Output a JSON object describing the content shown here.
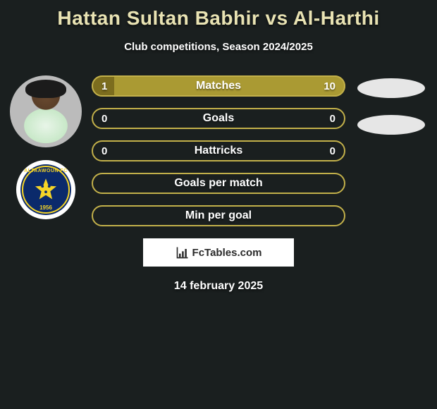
{
  "title": "Hattan Sultan Babhir vs Al-Harthi",
  "subtitle": "Club competitions, Season 2024/2025",
  "date": "14 february 2025",
  "footer": {
    "site": "FcTables.com"
  },
  "colors": {
    "accent_dark": "#7c6d1e",
    "accent_mid": "#aa9a33",
    "accent_light": "#c2b04a",
    "bar_bg": "#1a1f1f"
  },
  "club": {
    "name": "ALTAAWOUN FC",
    "year": "1956"
  },
  "stats": [
    {
      "label": "Matches",
      "left_value": "1",
      "right_value": "10",
      "left_fill_pct": 9,
      "right_fill_pct": 91,
      "left_color": "#7c6d1e",
      "right_color": "#aa9a33",
      "border_color": "#c2b04a",
      "show_values": true
    },
    {
      "label": "Goals",
      "left_value": "0",
      "right_value": "0",
      "left_fill_pct": 0,
      "right_fill_pct": 0,
      "left_color": "#7c6d1e",
      "right_color": "#aa9a33",
      "border_color": "#c2b04a",
      "show_values": true
    },
    {
      "label": "Hattricks",
      "left_value": "0",
      "right_value": "0",
      "left_fill_pct": 0,
      "right_fill_pct": 0,
      "left_color": "#7c6d1e",
      "right_color": "#aa9a33",
      "border_color": "#c2b04a",
      "show_values": true
    },
    {
      "label": "Goals per match",
      "left_value": "",
      "right_value": "",
      "left_fill_pct": 0,
      "right_fill_pct": 0,
      "left_color": "#7c6d1e",
      "right_color": "#aa9a33",
      "border_color": "#c2b04a",
      "show_values": false
    },
    {
      "label": "Min per goal",
      "left_value": "",
      "right_value": "",
      "left_fill_pct": 0,
      "right_fill_pct": 0,
      "left_color": "#7c6d1e",
      "right_color": "#aa9a33",
      "border_color": "#c2b04a",
      "show_values": false
    }
  ]
}
